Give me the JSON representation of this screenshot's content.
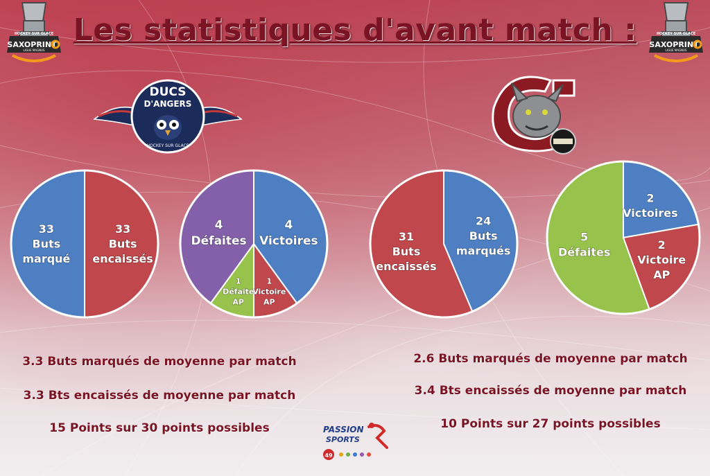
{
  "title": "Les statistiques d'avant match :",
  "corner_logo": {
    "line1": "HOCKEY SUR GLACE",
    "brand": "SAXOPRINT",
    "line2": "LIGUE MAGNUS"
  },
  "team_left": {
    "logo_text_1": "DUCS",
    "logo_text_2": "D'ANGERS",
    "logo_text_3": "HOCKEY SUR GLACE",
    "stats": [
      "3.3 Buts marqués de moyenne par match",
      "3.3 Bts encaissés de moyenne par match",
      "15 Points sur 30 points possibles"
    ]
  },
  "team_right": {
    "stats": [
      "2.6 Buts marqués de moyenne par match",
      "3.4 Bts encaissés de moyenne par match",
      "10 Points sur 27 points possibles"
    ]
  },
  "sponsor": {
    "line1": "PASSION",
    "line2": "SPORTS",
    "num": "49"
  },
  "colors": {
    "red": "#c0474b",
    "blue": "#4f7fc3",
    "purple": "#8460ab",
    "green": "#97c24c",
    "title": "#7a1424"
  },
  "chart_data": [
    {
      "type": "pie",
      "series": [
        {
          "label": [
            "33",
            "Buts",
            "encaissés"
          ],
          "value": 33,
          "color": "#c0474b"
        },
        {
          "label": [
            "33",
            "Buts",
            "marqué"
          ],
          "value": 33,
          "color": "#4f7fc3"
        }
      ]
    },
    {
      "type": "pie",
      "series": [
        {
          "label": [
            "4",
            "Victoires"
          ],
          "value": 4,
          "color": "#4f7fc3"
        },
        {
          "label": [
            "1",
            "Victoire",
            "AP"
          ],
          "value": 1,
          "color": "#c0474b"
        },
        {
          "label": [
            "1",
            "Défaite",
            "AP"
          ],
          "value": 1,
          "color": "#97c24c"
        },
        {
          "label": [
            "4",
            "Défaites"
          ],
          "value": 4,
          "color": "#8460ab"
        }
      ]
    },
    {
      "type": "pie",
      "series": [
        {
          "label": [
            "24",
            "Buts",
            "marqués"
          ],
          "value": 24,
          "color": "#4f7fc3"
        },
        {
          "label": [
            "31",
            "Buts",
            "encaissés"
          ],
          "value": 31,
          "color": "#c0474b"
        }
      ]
    },
    {
      "type": "pie",
      "series": [
        {
          "label": [
            "2",
            "Victoires"
          ],
          "value": 2,
          "color": "#4f7fc3"
        },
        {
          "label": [
            "2",
            "Victoire",
            "AP"
          ],
          "value": 2,
          "color": "#c0474b"
        },
        {
          "label": [
            "5",
            "Défaites"
          ],
          "value": 5,
          "color": "#97c24c"
        }
      ]
    }
  ]
}
